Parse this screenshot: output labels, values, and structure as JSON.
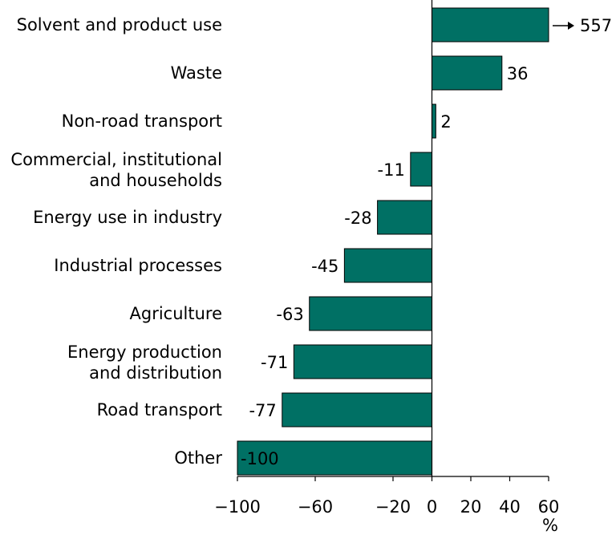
{
  "chart_data": {
    "type": "bar",
    "orientation": "horizontal",
    "categories": [
      [
        "Solvent and product use"
      ],
      [
        "Waste"
      ],
      [
        "Non-road transport"
      ],
      [
        "Commercial, institutional",
        "and households"
      ],
      [
        "Energy use in industry"
      ],
      [
        "Industrial processes"
      ],
      [
        "Agriculture"
      ],
      [
        "Energy production",
        "and distribution"
      ],
      [
        "Road transport"
      ],
      [
        "Other"
      ]
    ],
    "values": [
      557,
      36,
      2,
      -11,
      -28,
      -45,
      -63,
      -71,
      -77,
      -100
    ],
    "value_labels": [
      "557",
      "36",
      "2",
      "-11",
      "-28",
      "-45",
      "-63",
      "-71",
      "-77",
      "-100"
    ],
    "truncated": [
      true,
      false,
      false,
      false,
      false,
      false,
      false,
      false,
      false,
      false
    ],
    "xlim": [
      -100,
      60
    ],
    "xticks": [
      -100,
      -60,
      -20,
      0,
      20,
      40,
      60
    ],
    "xtick_labels": [
      "−100",
      "−60",
      "−20",
      "0",
      "20",
      "40",
      "60"
    ],
    "xlabel": "%",
    "grid": false,
    "bar_color": "#007064"
  }
}
